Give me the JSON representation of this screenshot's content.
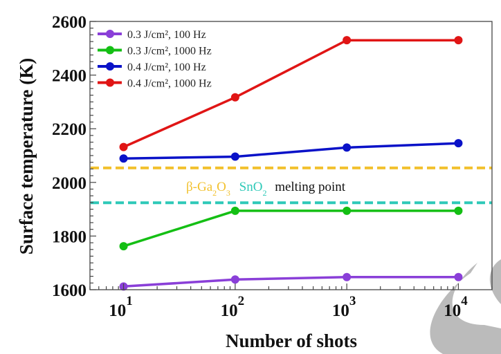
{
  "chart_data": {
    "type": "line",
    "title": "",
    "xlabel": "Number of shots",
    "ylabel": "Surface temperature (K)",
    "xscale": "log",
    "xlim": [
      5,
      20000
    ],
    "ylim": [
      1600,
      2600
    ],
    "x": [
      10,
      100,
      1000,
      10000
    ],
    "xticks": [
      {
        "value": 10,
        "base": "10",
        "exp": "1"
      },
      {
        "value": 100,
        "base": "10",
        "exp": "2"
      },
      {
        "value": 1000,
        "base": "10",
        "exp": "3"
      },
      {
        "value": 10000,
        "base": "10",
        "exp": "4"
      }
    ],
    "yticks": [
      1600,
      1800,
      2000,
      2200,
      2400,
      2600
    ],
    "y_minor_step": 25,
    "grid": false,
    "legend_position": "top-left",
    "series": [
      {
        "name": "0.3 J/cm², 100 Hz",
        "color": "#8a3fd8",
        "values": [
          1612,
          1638,
          1647,
          1647
        ]
      },
      {
        "name": "0.3 J/cm², 1000 Hz",
        "color": "#14bf14",
        "values": [
          1762,
          1894,
          1894,
          1894
        ]
      },
      {
        "name": "0.4 J/cm², 100 Hz",
        "color": "#0a12c8",
        "values": [
          2089,
          2096,
          2130,
          2146
        ]
      },
      {
        "name": "0.4 J/cm², 1000 Hz",
        "color": "#e01515",
        "values": [
          2132,
          2317,
          2530,
          2530
        ]
      }
    ],
    "reference_lines": [
      {
        "name": "β-Ga2O3 melting point",
        "value": 2054,
        "color": "#f2c12e",
        "style": "dashed"
      },
      {
        "name": "SnO2 melting point",
        "value": 1924,
        "color": "#2ec9b8",
        "style": "dashed"
      }
    ],
    "annotation": {
      "ga2o3": {
        "prefix": "β-Ga",
        "sub1": "2",
        "mid": "O",
        "sub2": "3",
        "color": "#f2c12e"
      },
      "sno2": {
        "prefix": "SnO",
        "sub": "2",
        "color": "#2ec9b8"
      },
      "suffix": "melting point",
      "suffix_color": "#111111"
    }
  }
}
